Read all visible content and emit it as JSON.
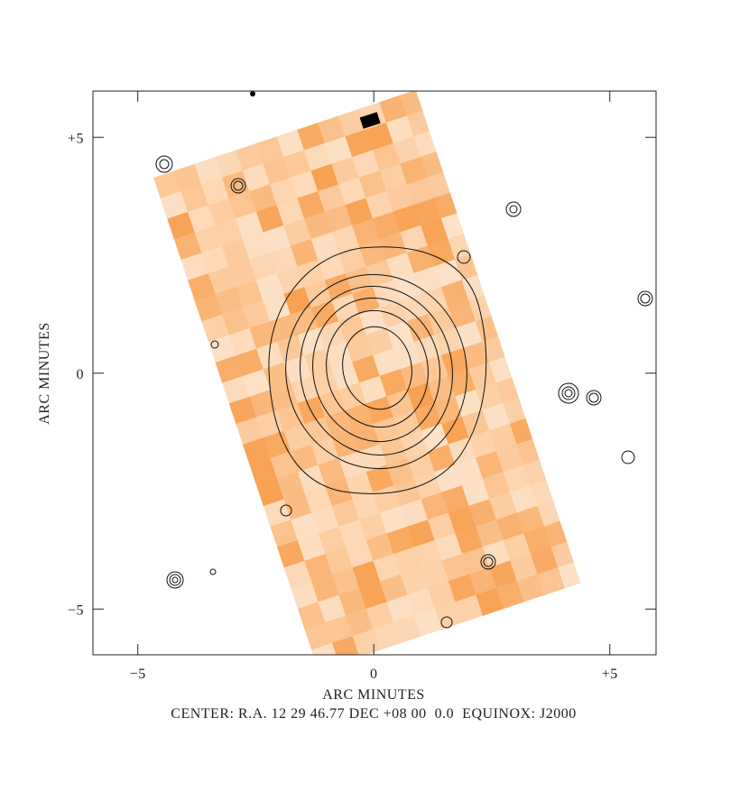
{
  "chart_data": {
    "type": "image",
    "xlabel": "ARC MINUTES",
    "ylabel": "ARC MINUTES",
    "caption": "CENTER: R.A. 12 29 46.77 DEC +08 00  0.0  EQUINOX: J2000",
    "xlim": [
      -5.95,
      5.98
    ],
    "ylim": [
      -5.97,
      5.98
    ],
    "xticks": [
      {
        "value": -5,
        "label": "−5"
      },
      0,
      {
        "value": 5,
        "label": "+5"
      }
    ],
    "yticks": [
      {
        "value": -5,
        "label": "−5"
      },
      0,
      {
        "value": 5,
        "label": "+5"
      }
    ]
  }
}
